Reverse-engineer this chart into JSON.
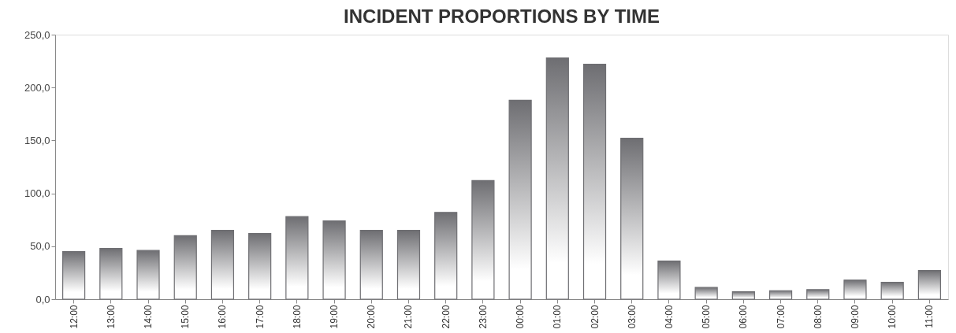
{
  "chart_data": {
    "type": "bar",
    "title": "INCIDENT PROPORTIONS BY TIME",
    "categories": [
      "12:00",
      "13:00",
      "14:00",
      "15:00",
      "16:00",
      "17:00",
      "18:00",
      "19:00",
      "20:00",
      "21:00",
      "22:00",
      "23:00",
      "00:00",
      "01:00",
      "02:00",
      "03:00",
      "04:00",
      "05:00",
      "06:00",
      "07:00",
      "08:00",
      "09:00",
      "10:00",
      "11:00"
    ],
    "values": [
      45,
      48,
      46,
      60,
      65,
      62,
      78,
      74,
      65,
      65,
      82,
      112,
      188,
      228,
      222,
      152,
      36,
      11,
      7,
      8,
      9,
      18,
      16,
      27
    ],
    "color": "#6e6e72",
    "ylim": [
      0,
      250
    ],
    "yticks": [
      {
        "value": 0,
        "label": "0,0"
      },
      {
        "value": 50,
        "label": "50,0"
      },
      {
        "value": 100,
        "label": "100,0"
      },
      {
        "value": 150,
        "label": "150,0"
      },
      {
        "value": 200,
        "label": "200,0"
      },
      {
        "value": 250,
        "label": "250,0"
      }
    ],
    "grid": false
  }
}
